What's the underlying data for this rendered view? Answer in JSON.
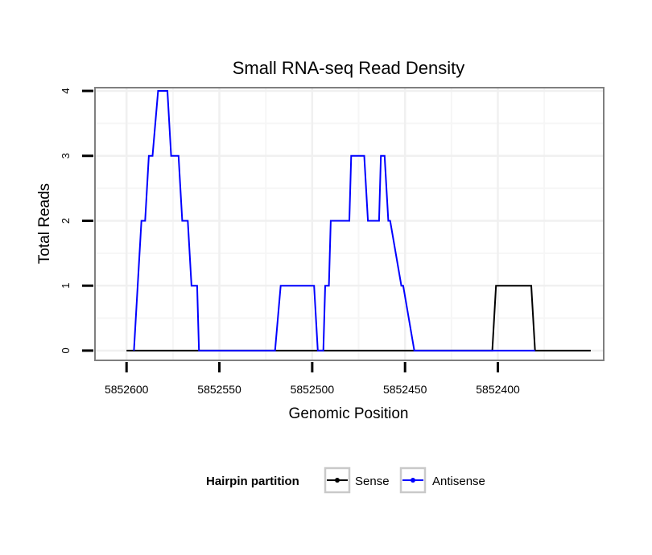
{
  "chart_data": {
    "type": "line",
    "title": "Small RNA-seq Read Density",
    "xlabel": "Genomic Position",
    "ylabel": "Total Reads",
    "x_reversed": true,
    "xlim": [
      5852617,
      5852343
    ],
    "ylim": [
      -0.15,
      4.05
    ],
    "xticks": [
      5852600,
      5852550,
      5852500,
      5852450,
      5852400
    ],
    "xtick_labels": [
      "5852600",
      "5852550",
      "5852500",
      "5852450",
      "5852400"
    ],
    "yticks": [
      0,
      1,
      2,
      3,
      4
    ],
    "ytick_labels": [
      "0",
      "1",
      "2",
      "3",
      "4"
    ],
    "grid": true,
    "legend": {
      "title": "Hairpin partition",
      "position": "bottom",
      "entries": [
        "Sense",
        "Antisense"
      ]
    },
    "series": [
      {
        "name": "Sense",
        "color": "#000000",
        "x": [
          5852600,
          5852580,
          5852480,
          5852403,
          5852401,
          5852382,
          5852380,
          5852350
        ],
        "y": [
          0,
          0,
          0,
          0,
          1,
          1,
          0,
          0
        ]
      },
      {
        "name": "Antisense",
        "color": "#0000ff",
        "x": [
          5852596,
          5852592,
          5852590,
          5852588,
          5852586,
          5852583,
          5852578,
          5852576,
          5852572,
          5852570,
          5852567,
          5852565,
          5852562,
          5852561,
          5852552,
          5852520,
          5852517,
          5852499,
          5852497,
          5852494,
          5852493,
          5852491,
          5852490,
          5852487,
          5852480,
          5852479,
          5852472,
          5852470,
          5852464,
          5852463,
          5852461,
          5852459,
          5852458,
          5852452,
          5852451,
          5852445,
          5852443,
          5852440,
          5852380
        ],
        "y": [
          0,
          2,
          2,
          3,
          3,
          4,
          4,
          3,
          3,
          2,
          2,
          1,
          1,
          0,
          0,
          0,
          1,
          1,
          0,
          0,
          1,
          1,
          2,
          2,
          2,
          3,
          3,
          2,
          2,
          3,
          3,
          2,
          2,
          1,
          1,
          0,
          0,
          0,
          0
        ]
      }
    ]
  }
}
